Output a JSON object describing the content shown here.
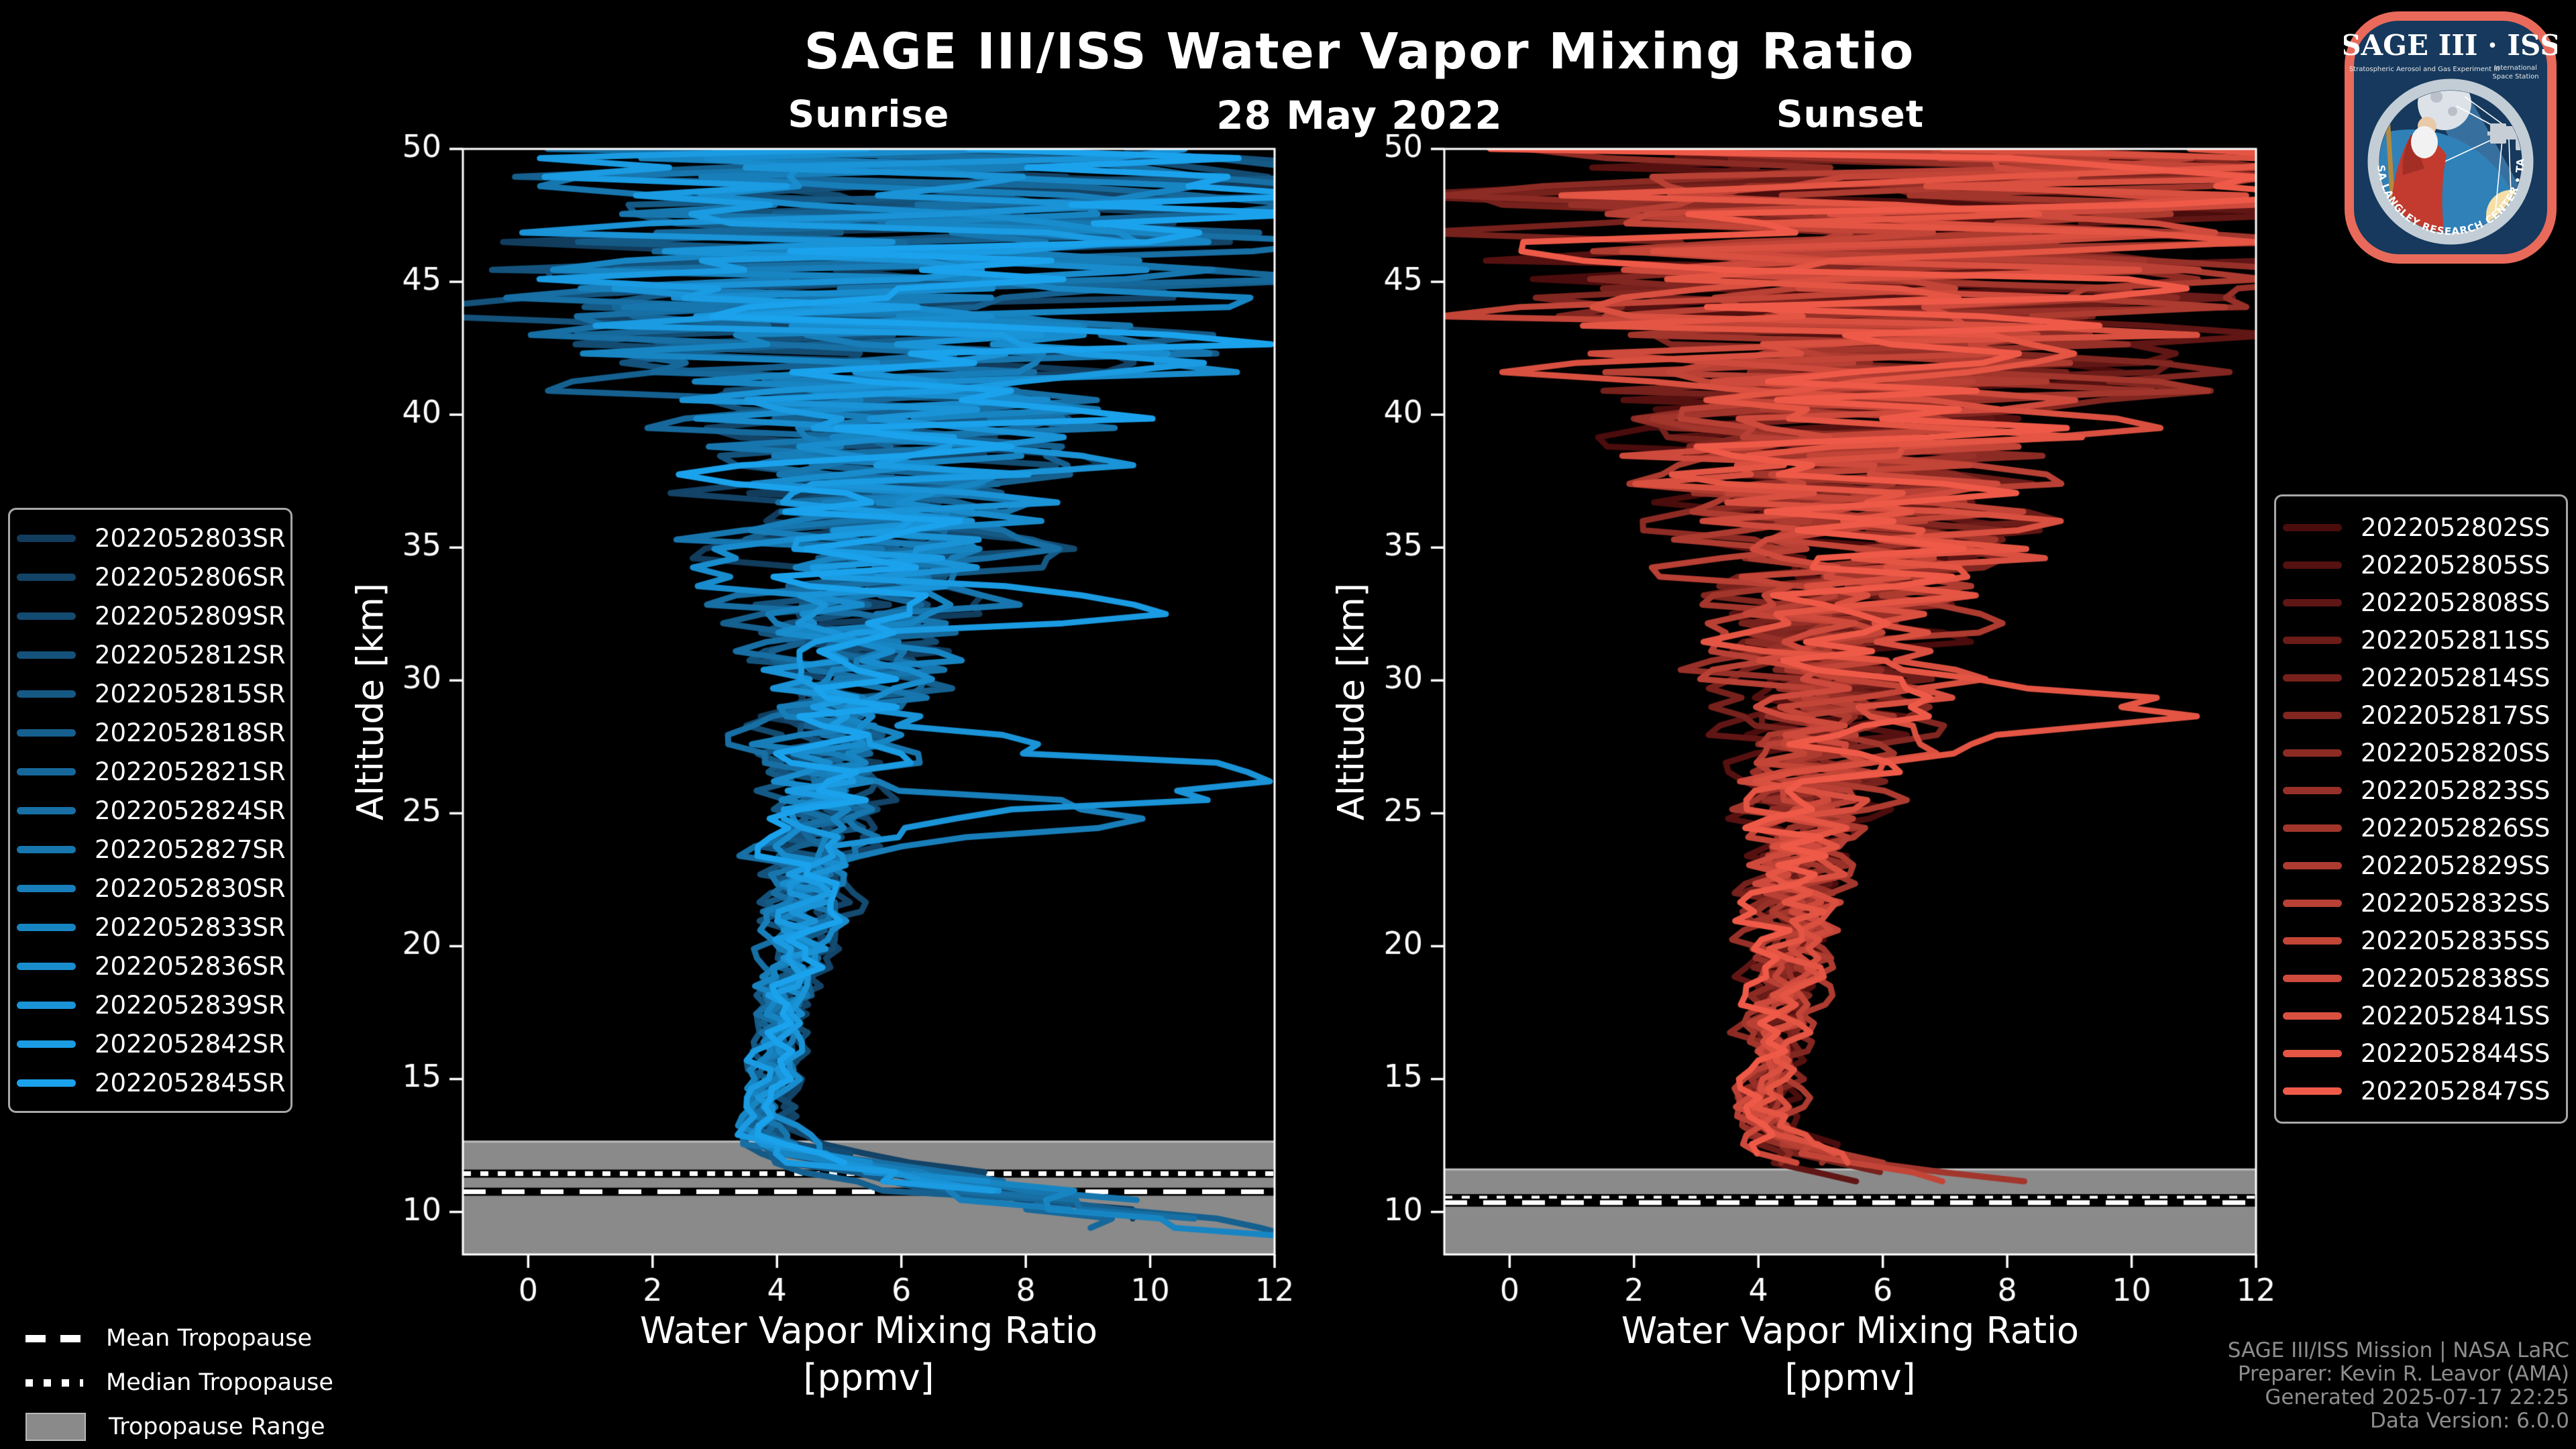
{
  "colors": {
    "background": "#000000",
    "text": "#ffffff",
    "muted_text": "#8d8d8d",
    "spine": "#ffffff",
    "tropopause_band": "#8a8a8a",
    "tropopause_band_edge": "#bdbdbd",
    "legend_border": "#a8a8a8"
  },
  "header": {
    "title": "SAGE III/ISS Water Vapor Mixing Ratio",
    "date": "28 May 2022"
  },
  "chart_data": [
    {
      "type": "line",
      "panel": "sunrise",
      "title": "Sunrise",
      "xlabel": "Water Vapor Mixing Ratio",
      "xlabel_units": "[ppmv]",
      "ylabel": "Altitude [km]",
      "xlim": [
        -1.05,
        12
      ],
      "ylim": [
        8.4,
        50
      ],
      "xticks": [
        0,
        2,
        4,
        6,
        8,
        10,
        12
      ],
      "yticks": [
        10,
        15,
        20,
        25,
        30,
        35,
        40,
        45,
        50
      ],
      "line_color_dark": "#123c5c",
      "line_color_bright": "#1ba2ec",
      "line_width": 9,
      "series": [
        "2022052803SR",
        "2022052806SR",
        "2022052809SR",
        "2022052812SR",
        "2022052815SR",
        "2022052818SR",
        "2022052821SR",
        "2022052824SR",
        "2022052827SR",
        "2022052830SR",
        "2022052833SR",
        "2022052836SR",
        "2022052839SR",
        "2022052842SR",
        "2022052845SR"
      ],
      "tropopause": {
        "mean_km": 10.76,
        "median_km": 11.44,
        "range_top_km": 12.65,
        "range_bottom_km": 8.4
      },
      "profile_base_km_ppmv": [
        [
          8.4,
          11.7
        ],
        [
          9.0,
          11.0
        ],
        [
          9.6,
          10.1
        ],
        [
          10.2,
          8.9
        ],
        [
          10.8,
          7.4
        ],
        [
          11.4,
          6.0
        ],
        [
          12.0,
          4.8
        ],
        [
          12.6,
          4.1
        ],
        [
          13.2,
          3.9
        ],
        [
          14,
          3.9
        ],
        [
          15,
          4.0
        ],
        [
          17,
          4.1
        ],
        [
          20,
          4.35
        ],
        [
          23,
          4.6
        ],
        [
          26,
          4.85
        ],
        [
          30,
          5.1
        ],
        [
          35,
          5.45
        ],
        [
          40,
          5.8
        ],
        [
          45,
          6.0
        ],
        [
          50,
          6.2
        ]
      ],
      "noise_amplitude_km_ppmv": [
        [
          8.4,
          2.1
        ],
        [
          9.5,
          1.8
        ],
        [
          10.5,
          1.45
        ],
        [
          11.5,
          1.0
        ],
        [
          12.3,
          0.55
        ],
        [
          13,
          0.4
        ],
        [
          15,
          0.3
        ],
        [
          18,
          0.42
        ],
        [
          21,
          0.6
        ],
        [
          24,
          0.85
        ],
        [
          26,
          1.05
        ],
        [
          28,
          1.25
        ],
        [
          30,
          1.5
        ],
        [
          32,
          1.8
        ],
        [
          34,
          2.2
        ],
        [
          36,
          2.7
        ],
        [
          38,
          3.1
        ],
        [
          40,
          3.6
        ],
        [
          42,
          4.6
        ],
        [
          44,
          5.6
        ],
        [
          46,
          6.3
        ],
        [
          50,
          6.6
        ]
      ],
      "min_altitude_range_km": [
        8.5,
        11.8
      ],
      "bulges": [
        {
          "series": 12,
          "center_km": 26.3,
          "width_km": 1.3,
          "amplitude_ppmv": 6.8
        },
        {
          "series": 9,
          "center_km": 24.8,
          "width_km": 1.1,
          "amplitude_ppmv": 5.2
        },
        {
          "series": 13,
          "center_km": 33.0,
          "width_km": 0.9,
          "amplitude_ppmv": 4.0
        }
      ]
    },
    {
      "type": "line",
      "panel": "sunset",
      "title": "Sunset",
      "xlabel": "Water Vapor Mixing Ratio",
      "xlabel_units": "[ppmv]",
      "ylabel": "Altitude [km]",
      "xlim": [
        -1.05,
        12
      ],
      "ylim": [
        8.4,
        50
      ],
      "xticks": [
        0,
        2,
        4,
        6,
        8,
        10,
        12
      ],
      "yticks": [
        10,
        15,
        20,
        25,
        30,
        35,
        40,
        45,
        50
      ],
      "line_color_dark": "#4a0c0c",
      "line_color_bright": "#ef5a48",
      "line_width": 9,
      "series": [
        "2022052802SS",
        "2022052805SS",
        "2022052808SS",
        "2022052811SS",
        "2022052814SS",
        "2022052817SS",
        "2022052820SS",
        "2022052823SS",
        "2022052826SS",
        "2022052829SS",
        "2022052832SS",
        "2022052835SS",
        "2022052838SS",
        "2022052841SS",
        "2022052844SS",
        "2022052847SS"
      ],
      "tropopause": {
        "mean_km": 10.35,
        "median_km": 10.52,
        "range_top_km": 11.6,
        "range_bottom_km": 8.4
      },
      "profile_base_km_ppmv": [
        [
          10.8,
          8.2
        ],
        [
          11.0,
          7.2
        ],
        [
          11.3,
          6.2
        ],
        [
          11.8,
          5.2
        ],
        [
          12.4,
          4.5
        ],
        [
          13.2,
          4.15
        ],
        [
          14,
          4.1
        ],
        [
          15,
          4.15
        ],
        [
          17,
          4.3
        ],
        [
          20,
          4.5
        ],
        [
          23,
          4.7
        ],
        [
          26,
          4.95
        ],
        [
          30,
          5.2
        ],
        [
          35,
          5.5
        ],
        [
          40,
          5.85
        ],
        [
          45,
          6.05
        ],
        [
          50,
          6.25
        ]
      ],
      "noise_amplitude_km_ppmv": [
        [
          10.8,
          1.5
        ],
        [
          11.5,
          1.0
        ],
        [
          12.3,
          0.6
        ],
        [
          13,
          0.45
        ],
        [
          15,
          0.38
        ],
        [
          18,
          0.5
        ],
        [
          21,
          0.7
        ],
        [
          24,
          0.95
        ],
        [
          26,
          1.15
        ],
        [
          28,
          1.4
        ],
        [
          30,
          1.7
        ],
        [
          32,
          2.0
        ],
        [
          34,
          2.5
        ],
        [
          36,
          3.0
        ],
        [
          38,
          3.5
        ],
        [
          40,
          4.3
        ],
        [
          42,
          5.2
        ],
        [
          44,
          6.0
        ],
        [
          46,
          6.5
        ],
        [
          50,
          6.7
        ]
      ],
      "min_altitude_range_km": [
        10.85,
        12.2
      ],
      "bulges": [
        {
          "series": 14,
          "center_km": 28.5,
          "width_km": 1.2,
          "amplitude_ppmv": 4.5
        }
      ]
    }
  ],
  "tropopause_legend": {
    "mean_label": "Mean Tropopause",
    "median_label": "Median Tropopause",
    "range_label": "Tropopause Range",
    "range_color": "#8a8a8a"
  },
  "attribution": {
    "line1": "SAGE III/ISS Mission | NASA LaRC",
    "line2": "Preparer: Kevin R. Leavor (AMA)",
    "line3": "Generated 2025-07-17 22:25",
    "line4": "Data Version: 6.0.0"
  },
  "logo": {
    "title": "SAGE III · ISS",
    "subtitle_left": "Stratospheric Aerosol and Gas Experiment III",
    "subtitle_right_1": "International",
    "subtitle_right_2": "Space Station",
    "ring_text": "BALL  •  NASA LANGLEY RESEARCH CENTER  •  TAS-I  •  ESA",
    "border_color": "#e96a5a",
    "bg_color": "#16395d"
  }
}
